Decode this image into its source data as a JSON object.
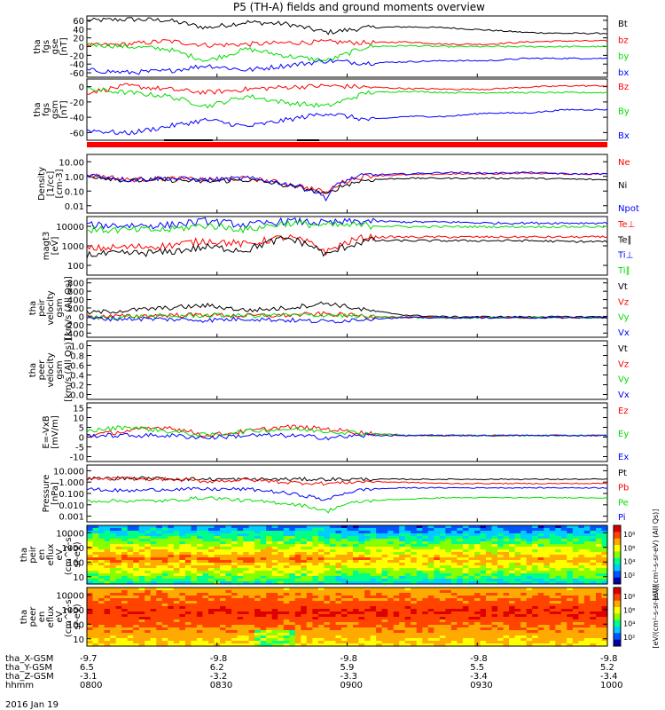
{
  "title": "P5 (TH-A) fields and ground moments overview",
  "date_label": "2016 Jan 19",
  "colors": {
    "black": "#000000",
    "red": "#ff0000",
    "green": "#00dd00",
    "blue": "#0000ff",
    "flag": "#ff0000"
  },
  "chart_data": [
    {
      "type": "line",
      "id": "fgs-gse",
      "ylabel": [
        "tha",
        "fgs",
        "gse",
        "[nT]"
      ],
      "yticks": [
        "60",
        "40",
        "20",
        "0",
        "-20",
        "-40",
        "-60"
      ],
      "ylim": [
        -65,
        65
      ],
      "scale": "linear",
      "series": [
        {
          "name": "Bt",
          "color": "#000000",
          "base": [
            55,
            58,
            56,
            40,
            52,
            48,
            30,
            40,
            42,
            40,
            35,
            30,
            28,
            28
          ]
        },
        {
          "name": "bz",
          "color": "#ff0000",
          "base": [
            2,
            5,
            12,
            3,
            5,
            8,
            10,
            8,
            10,
            5,
            5,
            10,
            12,
            12
          ]
        },
        {
          "name": "by",
          "color": "#00dd00",
          "base": [
            5,
            0,
            -5,
            -30,
            -5,
            -20,
            -30,
            0,
            2,
            0,
            0,
            0,
            0,
            0
          ]
        },
        {
          "name": "bx",
          "color": "#0000ff",
          "base": [
            -50,
            -55,
            -52,
            -40,
            -50,
            -40,
            -30,
            -35,
            -32,
            -30,
            -30,
            -25,
            -25,
            -25
          ]
        }
      ]
    },
    {
      "type": "line",
      "id": "fgs-gsm",
      "ylabel": [
        "tha",
        "fgs",
        "gsm",
        "[nT]"
      ],
      "yticks": [
        "0",
        "-20",
        "-40",
        "-60"
      ],
      "ylim": [
        -70,
        20
      ],
      "scale": "linear",
      "series": [
        {
          "name": "Bz",
          "color": "#ff0000",
          "base": [
            0,
            10,
            5,
            0,
            5,
            8,
            10,
            8,
            6,
            5,
            5,
            8,
            10,
            10
          ]
        },
        {
          "name": "By",
          "color": "#00dd00",
          "base": [
            5,
            0,
            -5,
            -20,
            -5,
            -15,
            -20,
            0,
            2,
            0,
            0,
            0,
            0,
            0
          ]
        },
        {
          "name": "Bx",
          "color": "#0000ff",
          "base": [
            -55,
            -60,
            -50,
            -40,
            -50,
            -40,
            -30,
            -40,
            -35,
            -35,
            -30,
            -30,
            -25,
            -25
          ]
        }
      ]
    },
    {
      "type": "line",
      "id": "density",
      "ylabel": [
        "Density",
        "[1/cc]",
        "[cm-3]"
      ],
      "yticks": [
        "10.00",
        "1.00",
        "0.10",
        "0.01"
      ],
      "ylim": [
        0.01,
        10
      ],
      "scale": "log",
      "series": [
        {
          "name": "Ne",
          "color": "#ff0000",
          "base": [
            0.9,
            0.5,
            0.6,
            0.5,
            0.6,
            0.3,
            0.1,
            0.8,
            0.9,
            1.0,
            1.0,
            1.1,
            1.0,
            1.0
          ]
        },
        {
          "name": "Ni",
          "color": "#000000",
          "base": [
            0.8,
            0.45,
            0.5,
            0.4,
            0.5,
            0.25,
            0.08,
            0.5,
            0.6,
            0.6,
            0.6,
            0.6,
            0.55,
            0.5
          ]
        },
        {
          "name": "Npot",
          "color": "#0000ff",
          "base": [
            0.9,
            0.5,
            0.6,
            0.5,
            0.6,
            0.3,
            0.05,
            0.9,
            1.0,
            1.2,
            1.1,
            1.2,
            1.0,
            1.0
          ]
        }
      ]
    },
    {
      "type": "line",
      "id": "temperature",
      "ylabel": [
        "magt3",
        "[eV]"
      ],
      "yticks": [
        "10000",
        "1000",
        "100"
      ],
      "ylim": [
        100,
        10000
      ],
      "scale": "log",
      "series": [
        {
          "name": "Te⊥",
          "color": "#ff0000",
          "base": [
            800,
            900,
            1000,
            1500,
            1100,
            2000,
            600,
            2000,
            2000,
            2000,
            2000,
            2000,
            2000,
            2000
          ]
        },
        {
          "name": "Te∥",
          "color": "#000000",
          "base": [
            500,
            550,
            600,
            900,
            700,
            1800,
            450,
            1500,
            1500,
            1500,
            1500,
            1500,
            1400,
            1400
          ]
        },
        {
          "name": "Ti⊥",
          "color": "#0000ff",
          "base": [
            5000,
            5000,
            5000,
            7000,
            5000,
            7000,
            6000,
            7000,
            6500,
            6500,
            6000,
            6000,
            6000,
            6000
          ]
        },
        {
          "name": "Ti∥",
          "color": "#00dd00",
          "base": [
            3500,
            3500,
            3500,
            5000,
            3500,
            6000,
            5000,
            5000,
            4500,
            4500,
            4500,
            4500,
            4500,
            4500
          ]
        }
      ]
    },
    {
      "type": "line",
      "id": "peir-velocity",
      "ylabel": [
        "tha",
        "peir",
        "velocity",
        "gsm",
        "[km/s (All Qs)]"
      ],
      "yticks": [
        "800",
        "600",
        "400",
        "200",
        "0",
        "-200",
        "-400"
      ],
      "ylim": [
        -400,
        800
      ],
      "scale": "linear",
      "series": [
        {
          "name": "Vt",
          "color": "#000000",
          "base": [
            100,
            150,
            200,
            250,
            150,
            200,
            300,
            150,
            50,
            20,
            20,
            20,
            20,
            20
          ]
        },
        {
          "name": "Vz",
          "color": "#ff0000",
          "base": [
            20,
            30,
            50,
            60,
            40,
            50,
            80,
            30,
            10,
            0,
            0,
            0,
            0,
            0
          ]
        },
        {
          "name": "Vy",
          "color": "#00dd00",
          "base": [
            0,
            20,
            30,
            50,
            40,
            50,
            60,
            20,
            0,
            0,
            0,
            0,
            0,
            0
          ]
        },
        {
          "name": "Vx",
          "color": "#0000ff",
          "base": [
            -20,
            -20,
            -30,
            -50,
            -20,
            -50,
            -80,
            -20,
            0,
            0,
            0,
            0,
            0,
            0
          ]
        }
      ]
    },
    {
      "type": "line",
      "id": "peer-velocity",
      "ylabel": [
        "tha",
        "peer",
        "velocity",
        "gsm",
        "[km/s (All Qs)]"
      ],
      "yticks": [
        "1.0",
        "0.8",
        "0.6",
        "0.4",
        "0.2",
        "0.0"
      ],
      "ylim": [
        0,
        1
      ],
      "scale": "linear",
      "series": [
        {
          "name": "Vt",
          "color": "#000000"
        },
        {
          "name": "Vz",
          "color": "#ff0000"
        },
        {
          "name": "Vy",
          "color": "#00dd00"
        },
        {
          "name": "Vx",
          "color": "#0000ff"
        }
      ]
    },
    {
      "type": "line",
      "id": "efield",
      "ylabel": [
        "E=-VxB",
        "[mV/m]"
      ],
      "yticks": [
        "15",
        "10",
        "5",
        "0",
        "-5",
        "-10"
      ],
      "ylim": [
        -12,
        15
      ],
      "scale": "linear",
      "series": [
        {
          "name": "Ez",
          "color": "#ff0000",
          "base": [
            0,
            2,
            4,
            0,
            2,
            4,
            3,
            1,
            0,
            0,
            0,
            0,
            0,
            0
          ]
        },
        {
          "name": "Ey",
          "color": "#00dd00",
          "base": [
            2,
            4,
            2,
            0,
            2,
            3,
            2,
            1,
            0,
            0,
            0,
            0,
            0,
            0
          ]
        },
        {
          "name": "Ex",
          "color": "#0000ff",
          "base": [
            0,
            0,
            0,
            -1,
            0,
            0,
            -1,
            0,
            0,
            0,
            0,
            0,
            0,
            0
          ]
        }
      ]
    },
    {
      "type": "line",
      "id": "pressure",
      "ylabel": [
        "Pressure",
        "[nPa]"
      ],
      "yticks": [
        "10.000",
        "1.000",
        "0.100",
        "0.010",
        "0.001"
      ],
      "ylim": [
        0.001,
        10
      ],
      "scale": "log",
      "series": [
        {
          "name": "Pt",
          "color": "#000000",
          "base": [
            1.1,
            1.2,
            1.1,
            1.0,
            1.0,
            1.0,
            1.0,
            1.0,
            1.0,
            1.0,
            1.0,
            1.0,
            1.0,
            1.0
          ]
        },
        {
          "name": "Pb",
          "color": "#ff0000",
          "base": [
            1.0,
            1.1,
            1.0,
            0.7,
            0.9,
            0.6,
            0.5,
            0.7,
            0.6,
            0.5,
            0.5,
            0.5,
            0.5,
            0.5
          ]
        },
        {
          "name": "Pe",
          "color": "#00dd00",
          "base": [
            0.03,
            0.03,
            0.03,
            0.05,
            0.03,
            0.02,
            0.005,
            0.03,
            0.04,
            0.05,
            0.05,
            0.05,
            0.05,
            0.05
          ]
        },
        {
          "name": "Pi",
          "color": "#0000ff",
          "base": [
            0.2,
            0.15,
            0.2,
            0.2,
            0.2,
            0.1,
            0.03,
            0.2,
            0.25,
            0.25,
            0.25,
            0.25,
            0.25,
            0.25
          ]
        }
      ]
    },
    {
      "type": "heatmap",
      "id": "peir-eflux",
      "ylabel": [
        "tha",
        "peir",
        "en",
        "eflux",
        "eV",
        "(cm^2-s-",
        "sr-eV)"
      ],
      "yticks": [
        "10000",
        "1000",
        "100",
        "10"
      ],
      "ylim": [
        5,
        20000
      ],
      "scale": "log",
      "colorbar": {
        "label": "[eV/(cm²-s-sr-eV) (All Qs)]",
        "ticks": [
          "10⁸",
          "10⁶",
          "10⁴",
          "10²"
        ]
      }
    },
    {
      "type": "heatmap",
      "id": "peer-eflux",
      "ylabel": [
        "tha",
        "peer",
        "en",
        "eflux",
        "eV",
        "(cm^2-s-",
        "sr-eV)"
      ],
      "yticks": [
        "10000",
        "1000",
        "100",
        "10"
      ],
      "ylim": [
        5,
        20000
      ],
      "scale": "log",
      "colorbar": {
        "label": "[eV/(cm²-s-sr-eV)]",
        "ticks": [
          "10⁸",
          "10⁶",
          "10⁴",
          "10²"
        ]
      }
    }
  ],
  "xaxis": {
    "rows": [
      {
        "label": "tha_X-GSM",
        "values": [
          "-9.7",
          "-9.8",
          "-9.8",
          "-9.8",
          "-9.8"
        ]
      },
      {
        "label": "tha_Y-GSM",
        "values": [
          "6.5",
          "6.2",
          "5.9",
          "5.5",
          "5.2"
        ]
      },
      {
        "label": "tha_Z-GSM",
        "values": [
          "-3.1",
          "-3.2",
          "-3.3",
          "-3.4",
          "-3.4"
        ]
      },
      {
        "label": "hhmm",
        "values": [
          "0800",
          "0830",
          "0900",
          "0930",
          "1000"
        ]
      }
    ]
  }
}
